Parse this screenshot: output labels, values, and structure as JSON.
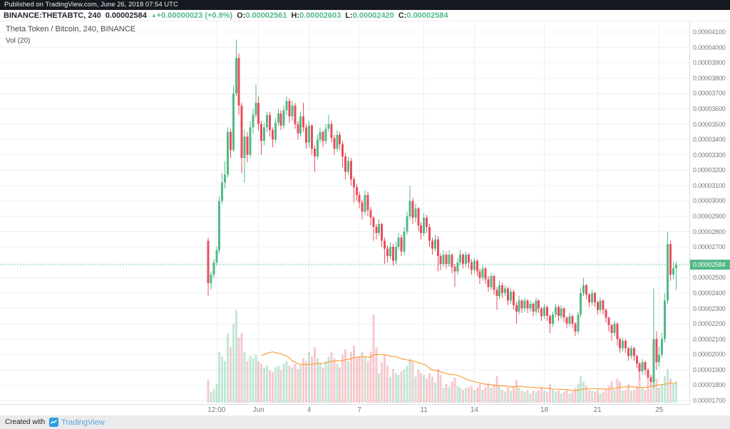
{
  "header": {
    "published": "Published on TradingView.com, June 26, 2018 07:54 UTC",
    "symbol": "BINANCE:THETABTC, 240",
    "last_price": "0.00002584",
    "change_arrow": "▲",
    "change_text": "+0.00000023 (+0.9%)",
    "ohlc": {
      "o_label": "O:",
      "o": "0.00002561",
      "h_label": "H:",
      "h": "0.00002603",
      "l_label": "L:",
      "l": "0.00002420",
      "c_label": "C:",
      "c": "0.00002584"
    }
  },
  "footer": {
    "created_with": "Created with",
    "brand": "TradingView"
  },
  "colors": {
    "up": "#53b987",
    "down": "#eb4d5c",
    "vol_up": "rgba(83,185,135,0.35)",
    "vol_down": "rgba(235,77,92,0.30)",
    "vol_ma": "#f7a239",
    "grid": "#eef0f4",
    "price_line": "#53b987",
    "badge_bg": "#53b987",
    "axis_text": "#747a80",
    "topbar_bg": "#15181f",
    "footer_bg": "#ebebeb",
    "brand_blue": "#56a5e0"
  },
  "chart_data": {
    "type": "candlestick+volume",
    "title": "Theta Token / Bitcoin, 240, BINANCE",
    "vol_label": "Vol (20)",
    "symbol": "THETABTC",
    "exchange": "BINANCE",
    "interval_minutes": 240,
    "price_unit": "BTC",
    "price_multiplier": 1e-08,
    "ylim": [
      1700,
      4100
    ],
    "y_tick_step": 100,
    "y_tick_labels": [
      "0.00004100",
      "0.00004000",
      "0.00003900",
      "0.00003800",
      "0.00003700",
      "0.00003600",
      "0.00003500",
      "0.00003400",
      "0.00003300",
      "0.00003200",
      "0.00003100",
      "0.00003000",
      "0.00002900",
      "0.00002800",
      "0.00002700",
      "0.00002600",
      "0.00002500",
      "0.00002400",
      "0.00002300",
      "0.00002200",
      "0.00002100",
      "0.00002000",
      "0.00001900",
      "0.00001800",
      "0.00001700"
    ],
    "x_ticks": [
      {
        "label": "12:00",
        "i": 3
      },
      {
        "label": "Jun",
        "i": 18
      },
      {
        "label": "4",
        "i": 36
      },
      {
        "label": "7",
        "i": 54
      },
      {
        "label": "11",
        "i": 77
      },
      {
        "label": "14",
        "i": 95
      },
      {
        "label": "18",
        "i": 120
      },
      {
        "label": "21",
        "i": 139
      },
      {
        "label": "25",
        "i": 161
      }
    ],
    "last_close": 2584,
    "last_close_label": "0.00002584",
    "volume_ma_period": 20,
    "columns": [
      "open",
      "high",
      "low",
      "close",
      "volume_rel"
    ],
    "candles": [
      [
        2740,
        2760,
        2380,
        2465,
        25
      ],
      [
        2465,
        2540,
        2420,
        2520,
        12
      ],
      [
        2520,
        2620,
        2500,
        2600,
        15
      ],
      [
        2600,
        2700,
        2580,
        2680,
        20
      ],
      [
        2680,
        3030,
        2660,
        3000,
        55
      ],
      [
        3000,
        3180,
        2980,
        3120,
        50
      ],
      [
        3120,
        3260,
        3080,
        3170,
        45
      ],
      [
        3170,
        3480,
        3150,
        3450,
        75
      ],
      [
        3450,
        3470,
        3280,
        3330,
        60
      ],
      [
        3330,
        3750,
        3320,
        3700,
        85
      ],
      [
        3700,
        4050,
        3680,
        3930,
        100
      ],
      [
        3930,
        3960,
        3560,
        3620,
        70
      ],
      [
        3620,
        3640,
        3180,
        3280,
        75
      ],
      [
        3280,
        3460,
        3120,
        3420,
        55
      ],
      [
        3420,
        3450,
        3250,
        3300,
        45
      ],
      [
        3300,
        3520,
        3280,
        3480,
        50
      ],
      [
        3480,
        3600,
        3440,
        3560,
        48
      ],
      [
        3560,
        3760,
        3540,
        3640,
        52
      ],
      [
        3640,
        3680,
        3460,
        3500,
        45
      ],
      [
        3500,
        3520,
        3300,
        3390,
        42
      ],
      [
        3390,
        3510,
        3360,
        3480,
        38
      ],
      [
        3480,
        3580,
        3450,
        3560,
        40
      ],
      [
        3560,
        3580,
        3420,
        3460,
        35
      ],
      [
        3460,
        3480,
        3350,
        3400,
        33
      ],
      [
        3400,
        3540,
        3380,
        3510,
        38
      ],
      [
        3510,
        3600,
        3490,
        3570,
        40
      ],
      [
        3570,
        3590,
        3460,
        3490,
        35
      ],
      [
        3490,
        3620,
        3470,
        3590,
        42
      ],
      [
        3590,
        3680,
        3560,
        3650,
        45
      ],
      [
        3650,
        3670,
        3510,
        3550,
        40
      ],
      [
        3550,
        3650,
        3520,
        3620,
        38
      ],
      [
        3620,
        3640,
        3470,
        3500,
        42
      ],
      [
        3500,
        3520,
        3400,
        3440,
        36
      ],
      [
        3440,
        3580,
        3420,
        3550,
        40
      ],
      [
        3550,
        3640,
        3450,
        3480,
        48
      ],
      [
        3480,
        3500,
        3340,
        3380,
        45
      ],
      [
        3380,
        3520,
        3350,
        3490,
        55
      ],
      [
        3490,
        3500,
        3300,
        3340,
        50
      ],
      [
        3340,
        3360,
        3190,
        3290,
        60
      ],
      [
        3290,
        3430,
        3270,
        3400,
        48
      ],
      [
        3400,
        3480,
        3380,
        3450,
        42
      ],
      [
        3450,
        3460,
        3350,
        3390,
        38
      ],
      [
        3390,
        3500,
        3370,
        3470,
        45
      ],
      [
        3470,
        3560,
        3450,
        3500,
        50
      ],
      [
        3500,
        3520,
        3380,
        3410,
        55
      ],
      [
        3410,
        3430,
        3300,
        3340,
        48
      ],
      [
        3340,
        3460,
        3320,
        3430,
        42
      ],
      [
        3430,
        3450,
        3330,
        3370,
        38
      ],
      [
        3370,
        3390,
        3220,
        3290,
        52
      ],
      [
        3290,
        3310,
        3140,
        3190,
        58
      ],
      [
        3190,
        3290,
        3170,
        3260,
        45
      ],
      [
        3260,
        3280,
        3100,
        3140,
        55
      ],
      [
        3140,
        3160,
        2990,
        3090,
        62
      ],
      [
        3090,
        3110,
        3000,
        3040,
        48
      ],
      [
        3040,
        3060,
        2950,
        2990,
        50
      ],
      [
        2990,
        3010,
        2880,
        2930,
        55
      ],
      [
        2930,
        3070,
        2910,
        3040,
        50
      ],
      [
        3040,
        3060,
        2900,
        2940,
        45
      ],
      [
        2940,
        2960,
        2840,
        2890,
        55
      ],
      [
        2890,
        2900,
        2740,
        2830,
        95
      ],
      [
        2830,
        2850,
        2750,
        2790,
        60
      ],
      [
        2790,
        2880,
        2770,
        2850,
        32
      ],
      [
        2850,
        2860,
        2700,
        2740,
        44
      ],
      [
        2740,
        2760,
        2590,
        2690,
        52
      ],
      [
        2690,
        2710,
        2600,
        2640,
        40
      ],
      [
        2640,
        2730,
        2620,
        2700,
        28
      ],
      [
        2700,
        2720,
        2580,
        2610,
        36
      ],
      [
        2610,
        2730,
        2590,
        2700,
        32
      ],
      [
        2700,
        2790,
        2680,
        2760,
        30
      ],
      [
        2760,
        2780,
        2640,
        2670,
        34
      ],
      [
        2670,
        2830,
        2650,
        2800,
        36
      ],
      [
        2800,
        2930,
        2780,
        2900,
        40
      ],
      [
        2900,
        3100,
        2880,
        3000,
        48
      ],
      [
        3000,
        3020,
        2850,
        2890,
        44
      ],
      [
        2890,
        2980,
        2860,
        2950,
        28
      ],
      [
        2950,
        2960,
        2800,
        2840,
        36
      ],
      [
        2840,
        2860,
        2750,
        2790,
        32
      ],
      [
        2790,
        2920,
        2770,
        2890,
        30
      ],
      [
        2890,
        2910,
        2790,
        2830,
        26
      ],
      [
        2830,
        2850,
        2700,
        2740,
        32
      ],
      [
        2740,
        2760,
        2650,
        2690,
        28
      ],
      [
        2690,
        2780,
        2670,
        2750,
        22
      ],
      [
        2750,
        2770,
        2540,
        2640,
        36
      ],
      [
        2640,
        2660,
        2550,
        2590,
        30
      ],
      [
        2590,
        2680,
        2570,
        2650,
        16
      ],
      [
        2650,
        2670,
        2560,
        2590,
        20
      ],
      [
        2590,
        2680,
        2570,
        2650,
        17
      ],
      [
        2650,
        2660,
        2530,
        2570,
        23
      ],
      [
        2570,
        2590,
        2440,
        2540,
        27
      ],
      [
        2540,
        2630,
        2520,
        2600,
        18
      ],
      [
        2600,
        2680,
        2580,
        2650,
        16
      ],
      [
        2650,
        2660,
        2560,
        2590,
        14
      ],
      [
        2590,
        2670,
        2570,
        2650,
        16
      ],
      [
        2650,
        2660,
        2560,
        2600,
        17
      ],
      [
        2600,
        2620,
        2520,
        2550,
        18
      ],
      [
        2550,
        2630,
        2530,
        2610,
        14
      ],
      [
        2610,
        2620,
        2510,
        2540,
        16
      ],
      [
        2540,
        2560,
        2460,
        2500,
        20
      ],
      [
        2500,
        2580,
        2480,
        2560,
        14
      ],
      [
        2560,
        2570,
        2460,
        2490,
        17
      ],
      [
        2490,
        2510,
        2410,
        2440,
        21
      ],
      [
        2440,
        2530,
        2420,
        2510,
        16
      ],
      [
        2510,
        2520,
        2390,
        2420,
        20
      ],
      [
        2420,
        2440,
        2290,
        2380,
        29
      ],
      [
        2380,
        2480,
        2360,
        2450,
        18
      ],
      [
        2450,
        2470,
        2370,
        2400,
        14
      ],
      [
        2400,
        2450,
        2380,
        2430,
        12
      ],
      [
        2430,
        2440,
        2320,
        2350,
        16
      ],
      [
        2350,
        2430,
        2330,
        2410,
        13
      ],
      [
        2410,
        2420,
        2290,
        2320,
        18
      ],
      [
        2320,
        2340,
        2200,
        2280,
        25
      ],
      [
        2280,
        2380,
        2260,
        2350,
        16
      ],
      [
        2350,
        2360,
        2270,
        2300,
        13
      ],
      [
        2300,
        2370,
        2280,
        2350,
        12
      ],
      [
        2350,
        2360,
        2270,
        2300,
        14
      ],
      [
        2300,
        2350,
        2280,
        2330,
        10
      ],
      [
        2330,
        2340,
        2250,
        2280,
        13
      ],
      [
        2280,
        2370,
        2260,
        2350,
        12
      ],
      [
        2350,
        2360,
        2270,
        2300,
        14
      ],
      [
        2300,
        2310,
        2220,
        2250,
        16
      ],
      [
        2250,
        2330,
        2230,
        2310,
        13
      ],
      [
        2310,
        2320,
        2220,
        2250,
        12
      ],
      [
        2250,
        2260,
        2140,
        2200,
        20
      ],
      [
        2200,
        2280,
        2180,
        2260,
        14
      ],
      [
        2260,
        2330,
        2240,
        2310,
        12
      ],
      [
        2310,
        2320,
        2220,
        2250,
        13
      ],
      [
        2250,
        2320,
        2230,
        2300,
        10
      ],
      [
        2300,
        2310,
        2210,
        2240,
        12
      ],
      [
        2240,
        2250,
        2170,
        2200,
        14
      ],
      [
        2200,
        2270,
        2180,
        2250,
        10
      ],
      [
        2250,
        2260,
        2170,
        2200,
        12
      ],
      [
        2200,
        2210,
        2120,
        2150,
        16
      ],
      [
        2150,
        2280,
        2130,
        2260,
        20
      ],
      [
        2260,
        2430,
        2240,
        2400,
        29
      ],
      [
        2400,
        2500,
        2380,
        2450,
        23
      ],
      [
        2450,
        2460,
        2360,
        2390,
        18
      ],
      [
        2390,
        2400,
        2310,
        2340,
        14
      ],
      [
        2340,
        2420,
        2320,
        2400,
        13
      ],
      [
        2400,
        2410,
        2310,
        2340,
        12
      ],
      [
        2340,
        2350,
        2260,
        2290,
        14
      ],
      [
        2290,
        2370,
        2270,
        2350,
        10
      ],
      [
        2350,
        2360,
        2260,
        2290,
        12
      ],
      [
        2290,
        2300,
        2210,
        2240,
        14
      ],
      [
        2240,
        2250,
        2150,
        2190,
        18
      ],
      [
        2190,
        2200,
        2090,
        2140,
        23
      ],
      [
        2140,
        2220,
        2120,
        2200,
        14
      ],
      [
        2200,
        2210,
        2060,
        2100,
        26
      ],
      [
        2100,
        2110,
        2010,
        2040,
        23
      ],
      [
        2040,
        2110,
        2020,
        2090,
        13
      ],
      [
        2090,
        2100,
        2010,
        2040,
        14
      ],
      [
        2040,
        2050,
        1960,
        1990,
        20
      ],
      [
        1990,
        2060,
        1970,
        2040,
        13
      ],
      [
        2040,
        2050,
        1960,
        1990,
        14
      ],
      [
        1990,
        2000,
        1910,
        1940,
        18
      ],
      [
        1940,
        1950,
        1840,
        1890,
        26
      ],
      [
        1890,
        1970,
        1870,
        1950,
        16
      ],
      [
        1950,
        1960,
        1870,
        1900,
        14
      ],
      [
        1900,
        1910,
        1830,
        1850,
        23
      ],
      [
        1850,
        1870,
        1790,
        1820,
        16
      ],
      [
        1820,
        2430,
        1780,
        2100,
        36
      ],
      [
        2100,
        2150,
        1900,
        1950,
        26
      ],
      [
        1950,
        2050,
        1920,
        2000,
        16
      ],
      [
        2000,
        2140,
        1980,
        2100,
        20
      ],
      [
        2100,
        2400,
        2080,
        2350,
        29
      ],
      [
        2350,
        2800,
        2330,
        2720,
        36
      ],
      [
        2720,
        2740,
        2480,
        2520,
        26
      ],
      [
        2520,
        2600,
        2490,
        2561,
        20
      ],
      [
        2561,
        2603,
        2420,
        2584,
        23
      ]
    ]
  }
}
